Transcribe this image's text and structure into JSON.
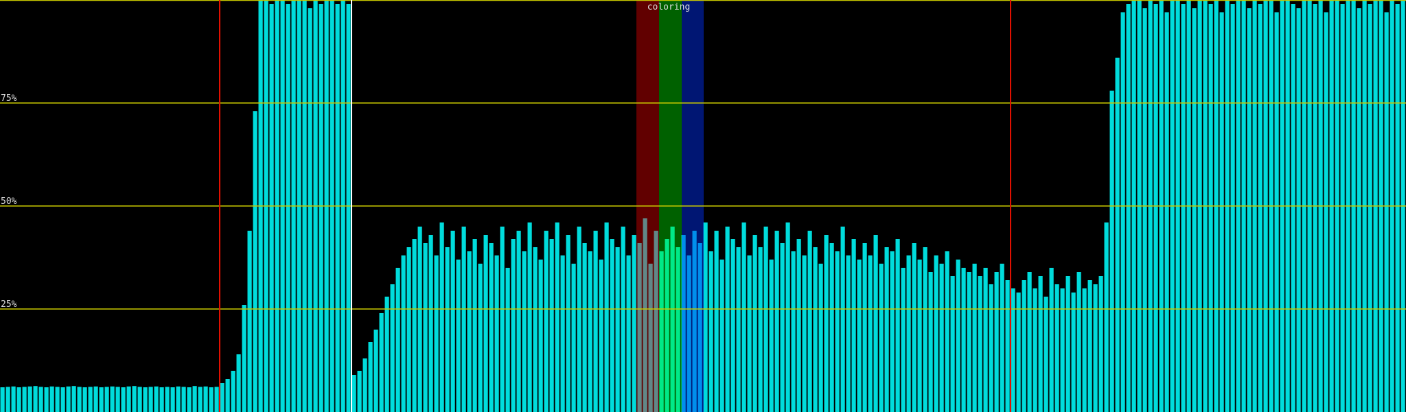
{
  "chart_data": {
    "type": "bar",
    "annotation": "coloring",
    "color": "#00dcdc",
    "ylim": [
      0,
      100
    ],
    "yticks": [
      {
        "value": 25,
        "label": "25%"
      },
      {
        "value": 50,
        "label": "50%"
      },
      {
        "value": 75,
        "label": "75%"
      }
    ],
    "grid": true,
    "values": [
      6,
      6.1,
      6.2,
      6,
      6.1,
      6.2,
      6.3,
      6.1,
      6,
      6.2,
      6.1,
      6,
      6.2,
      6.3,
      6.1,
      6,
      6.1,
      6.2,
      6,
      6.1,
      6.2,
      6.1,
      6,
      6.2,
      6.3,
      6.1,
      6,
      6.1,
      6.2,
      6,
      6.1,
      6,
      6.2,
      6.1,
      6,
      6.3,
      6.1,
      6.2,
      6,
      6.1,
      7,
      8,
      10,
      14,
      26,
      44,
      73,
      100,
      100,
      99,
      100,
      100,
      99,
      100,
      100,
      100,
      98,
      100,
      99,
      100,
      100,
      99,
      100,
      99,
      9,
      10,
      13,
      17,
      20,
      24,
      28,
      31,
      35,
      38,
      40,
      42,
      45,
      41,
      43,
      38,
      46,
      40,
      44,
      37,
      45,
      39,
      42,
      36,
      43,
      41,
      38,
      45,
      35,
      42,
      44,
      39,
      46,
      40,
      37,
      44,
      42,
      46,
      38,
      43,
      36,
      45,
      41,
      39,
      44,
      37,
      46,
      42,
      40,
      45,
      38,
      43,
      41,
      47,
      36,
      44,
      39,
      42,
      45,
      40,
      43,
      38,
      44,
      41,
      46,
      39,
      44,
      37,
      45,
      42,
      40,
      46,
      38,
      43,
      40,
      45,
      37,
      44,
      41,
      46,
      39,
      42,
      38,
      44,
      40,
      36,
      43,
      41,
      39,
      45,
      38,
      42,
      37,
      41,
      38,
      43,
      36,
      40,
      39,
      42,
      35,
      38,
      41,
      37,
      40,
      34,
      38,
      36,
      39,
      33,
      37,
      35,
      34,
      36,
      33,
      35,
      31,
      34,
      36,
      32,
      30,
      29,
      32,
      34,
      30,
      33,
      28,
      35,
      31,
      30,
      33,
      29,
      34,
      30,
      32,
      31,
      33,
      46,
      78,
      86,
      97,
      99,
      100,
      100,
      98,
      100,
      99,
      100,
      97,
      100,
      100,
      99,
      100,
      98,
      100,
      100,
      99,
      100,
      97,
      100,
      99,
      100,
      100,
      98,
      100,
      99,
      100,
      100,
      97,
      100,
      100,
      99,
      98,
      100,
      100,
      99,
      100,
      97,
      100,
      100,
      99,
      100,
      100,
      98,
      100,
      99,
      100,
      100,
      97,
      100,
      99,
      100
    ]
  }
}
